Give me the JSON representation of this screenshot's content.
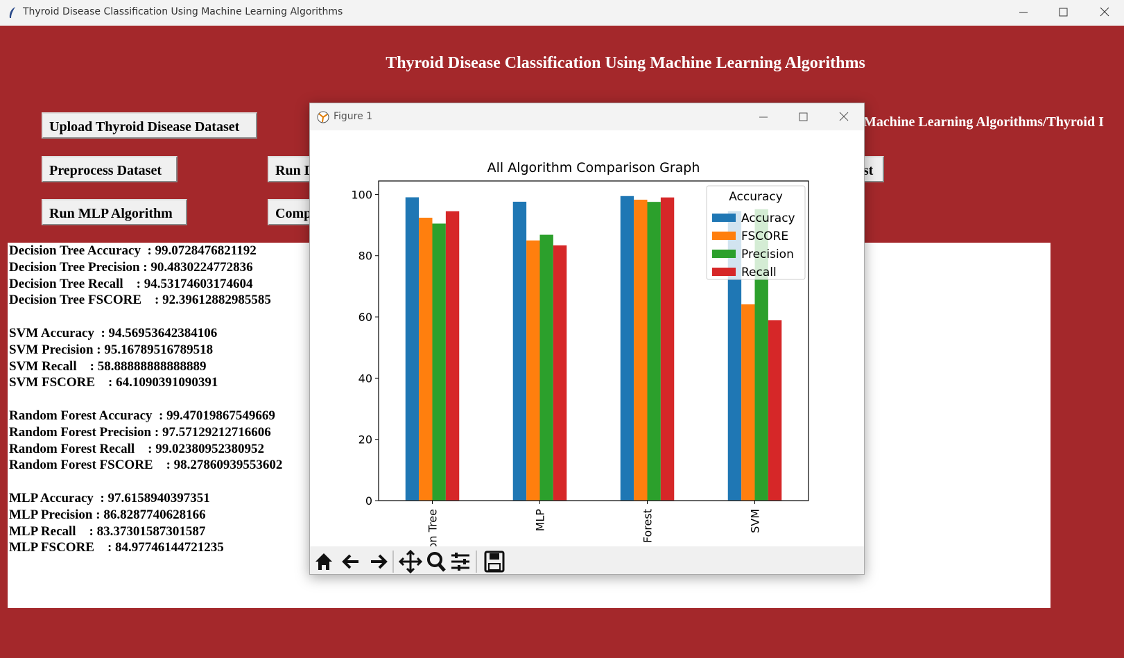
{
  "window": {
    "title": "Thyroid Disease Classification Using Machine Learning Algorithms"
  },
  "app": {
    "heading": "Thyroid Disease Classification Using Machine Learning Algorithms",
    "buttons": [
      "Upload Thyroid Disease Dataset",
      "Preprocess Dataset",
      "Run MLP Algorithm",
      "Run D",
      "Comp",
      "est"
    ],
    "path_label": "Machine Learning Algorithms/Thyroid I",
    "results": [
      [
        "Decision Tree Accuracy  : 99.0728476821192",
        "Decision Tree Precision : 90.4830224772836",
        "Decision Tree Recall    : 94.53174603174604",
        "Decision Tree FSCORE    : 92.39612882985585"
      ],
      [
        "SVM Accuracy  : 94.56953642384106",
        "SVM Precision : 95.16789516789518",
        "SVM Recall    : 58.88888888888889",
        "SVM FSCORE    : 64.1090391090391"
      ],
      [
        "Random Forest Accuracy  : 99.47019867549669",
        "Random Forest Precision : 97.57129212716606",
        "Random Forest Recall    : 99.02380952380952",
        "Random Forest FSCORE    : 98.27860939553602"
      ],
      [
        "MLP Accuracy  : 97.6158940397351",
        "MLP Precision : 86.8287740628166",
        "MLP Recall    : 83.37301587301587",
        "MLP FSCORE    : 84.97746144721235"
      ]
    ]
  },
  "figure": {
    "title": "Figure 1"
  },
  "chart_data": {
    "type": "bar",
    "title": "All Algorithm Comparison Graph",
    "categories": [
      "Decision Tree",
      "MLP",
      "Random Forest",
      "SVM"
    ],
    "series": [
      {
        "name": "Accuracy",
        "color": "#1f77b4",
        "values": [
          99.07,
          97.62,
          99.47,
          94.57
        ]
      },
      {
        "name": "FSCORE",
        "color": "#ff7f0e",
        "values": [
          92.4,
          84.98,
          98.28,
          64.11
        ]
      },
      {
        "name": "Precision",
        "color": "#2ca02c",
        "values": [
          90.48,
          86.83,
          97.57,
          95.17
        ]
      },
      {
        "name": "Recall",
        "color": "#d62728",
        "values": [
          94.53,
          83.37,
          99.02,
          58.89
        ]
      }
    ],
    "legend_title": "Accuracy",
    "legend": "upper right",
    "ylim": [
      0,
      104.4
    ],
    "yticks": [
      0,
      20,
      40,
      60,
      80,
      100
    ]
  }
}
